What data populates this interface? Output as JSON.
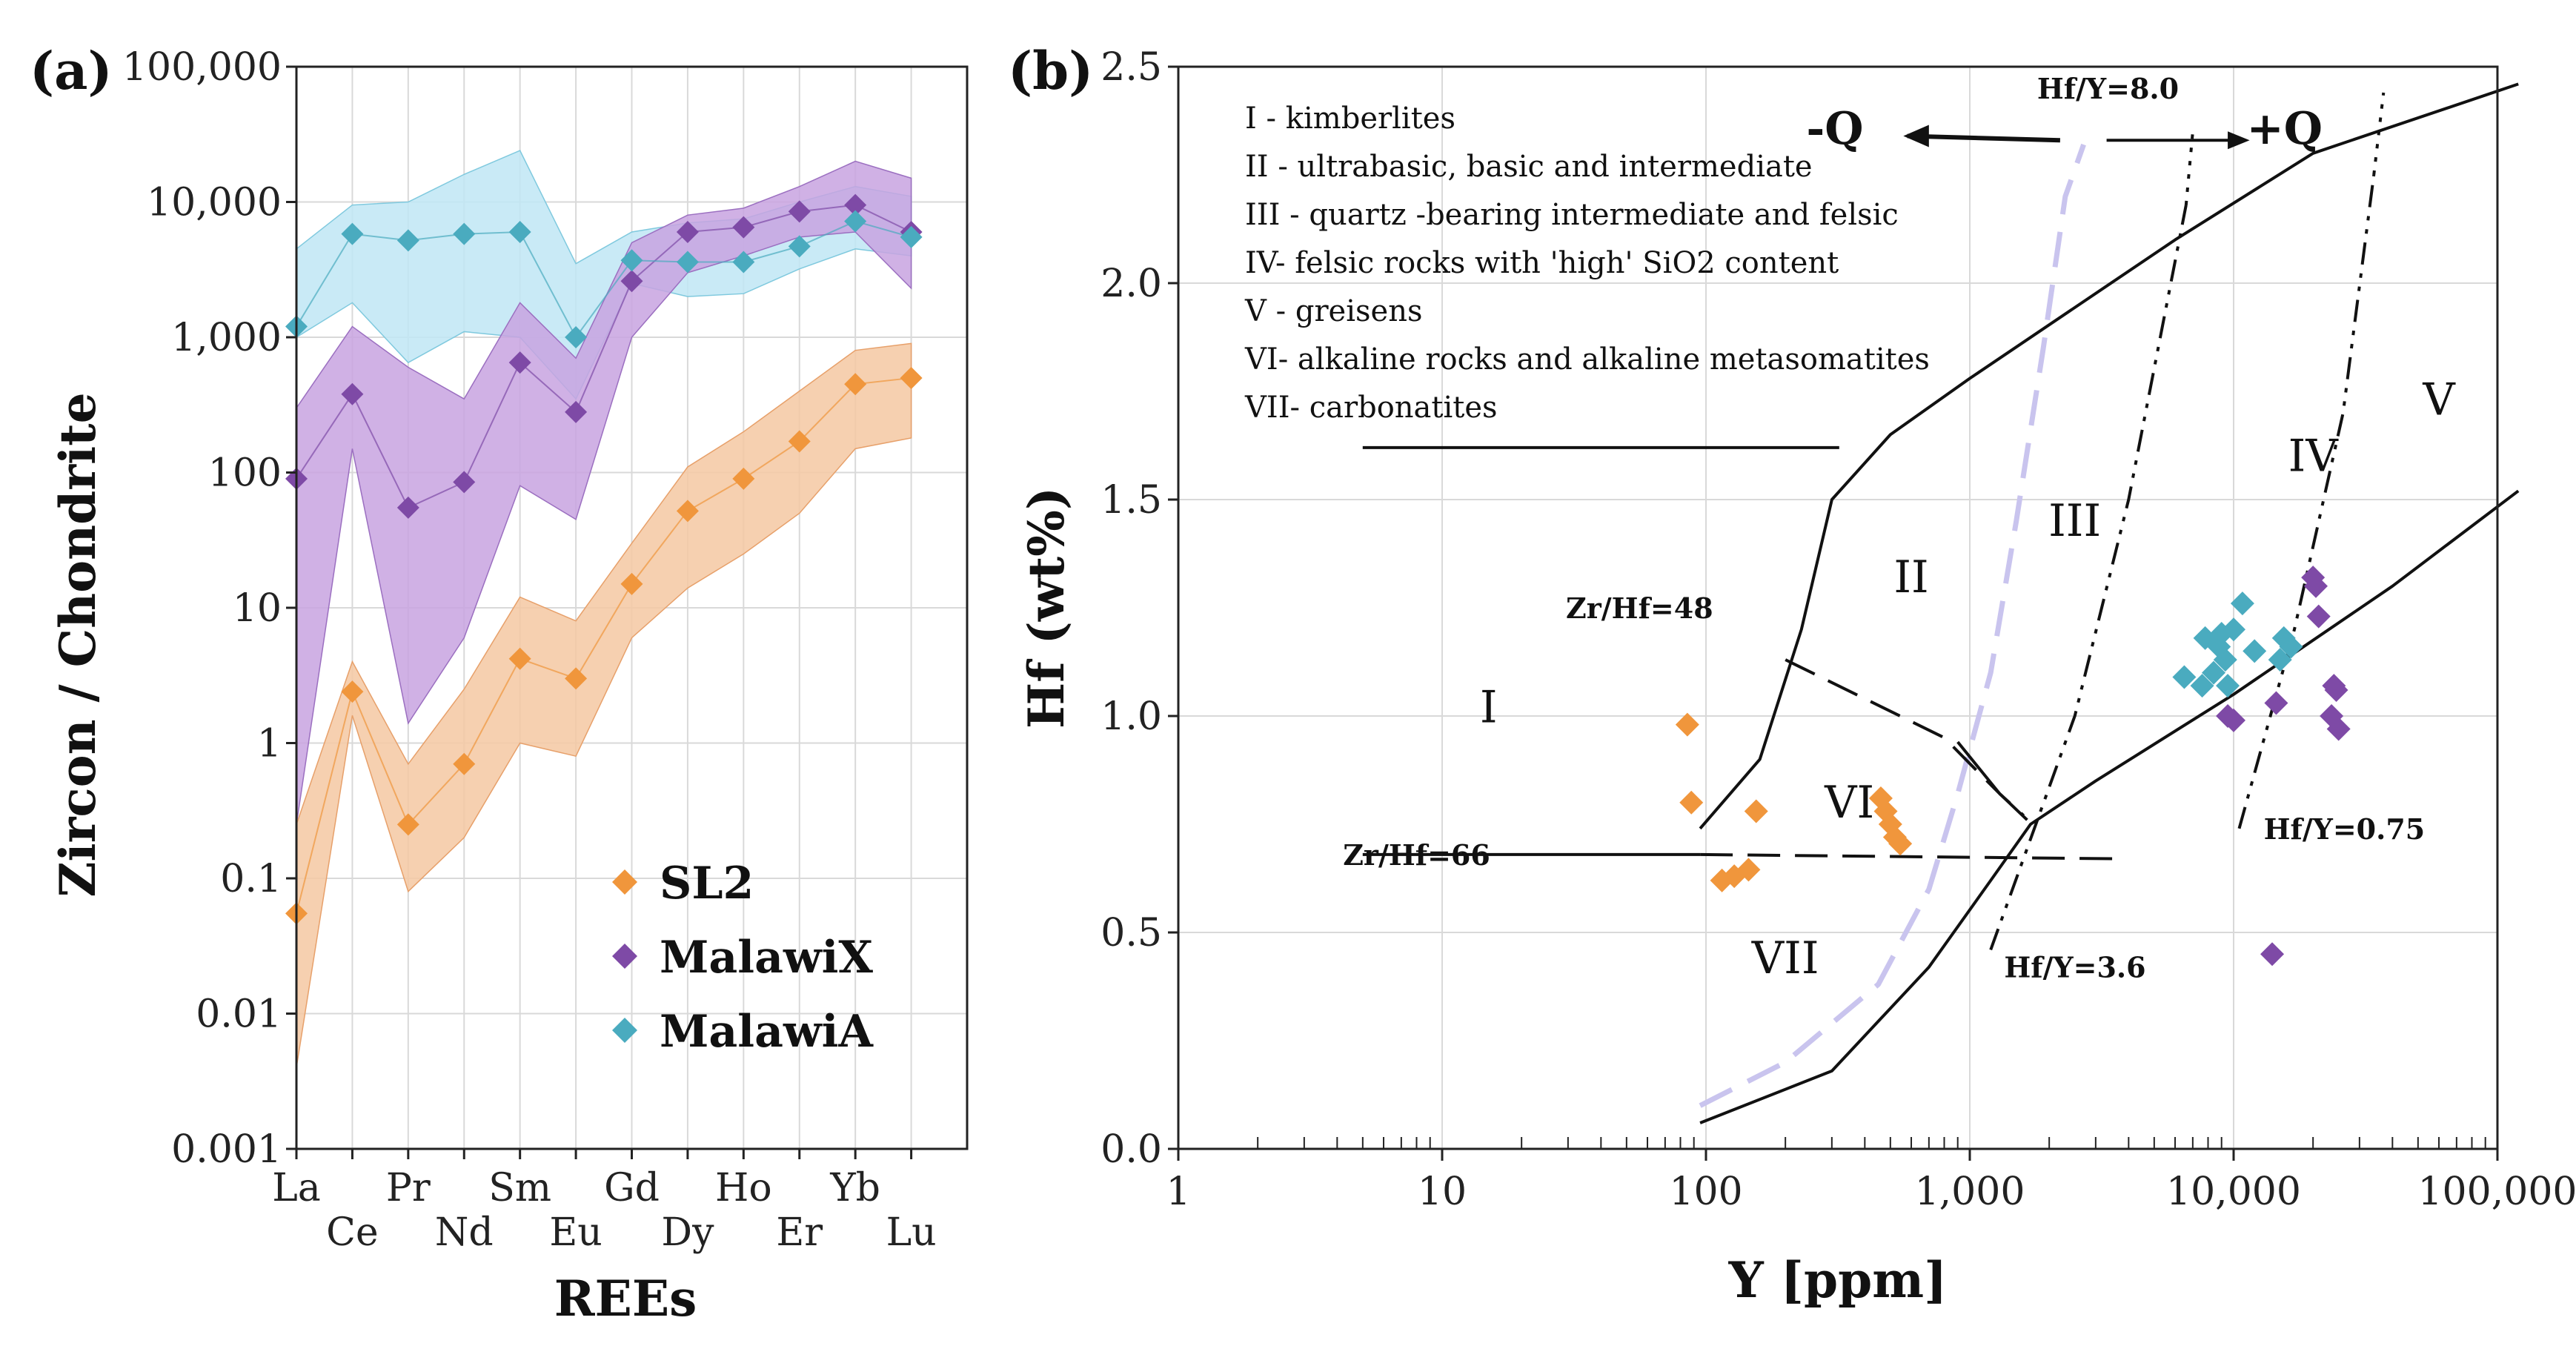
{
  "chart_data": [
    {
      "type": "line",
      "panel_label": "(a)",
      "xlabel": "REEs",
      "ylabel": "Zircon / Chondrite",
      "yscale": "log",
      "ylim": [
        0.001,
        100000
      ],
      "ytick_labels": [
        "0.001",
        "0.01",
        "0.1",
        "1",
        "10",
        "100",
        "1,000",
        "10,000",
        "100,000"
      ],
      "categories": [
        "La",
        "Ce",
        "Pr",
        "Nd",
        "Sm",
        "Eu",
        "Gd",
        "Dy",
        "Ho",
        "Er",
        "Yb",
        "Lu"
      ],
      "legend_position": "bottom-right",
      "series": [
        {
          "name": "SL2",
          "color": "#f0963c",
          "values": [
            0.055,
            2.4,
            0.25,
            0.7,
            4.2,
            3.0,
            15,
            52,
            90,
            170,
            450,
            500
          ],
          "range_low": [
            0.004,
            1.6,
            0.08,
            0.2,
            1.0,
            0.8,
            6,
            14,
            25,
            50,
            150,
            180
          ],
          "range_high": [
            0.25,
            4.0,
            0.7,
            2.5,
            12,
            8.0,
            30,
            110,
            200,
            400,
            800,
            900
          ]
        },
        {
          "name": "MalawiX",
          "color": "#7e4aa6",
          "values": [
            90,
            380,
            55,
            85,
            650,
            280,
            2600,
            6000,
            6500,
            8500,
            9500,
            6000
          ],
          "range_low": [
            0.25,
            150,
            1.4,
            6,
            80,
            45,
            1000,
            3000,
            4000,
            5500,
            6000,
            2300
          ],
          "range_high": [
            300,
            1200,
            600,
            350,
            1800,
            700,
            5000,
            8000,
            9000,
            13000,
            20000,
            15000
          ]
        },
        {
          "name": "MalawiA",
          "color": "#4aabbf",
          "values": [
            1200,
            5800,
            5200,
            5800,
            6000,
            1000,
            3700,
            3600,
            3600,
            4700,
            7200,
            5500
          ],
          "range_low": [
            1000,
            1800,
            650,
            1100,
            1000,
            350,
            2500,
            2000,
            2100,
            3200,
            4500,
            4000
          ],
          "range_high": [
            4500,
            9500,
            10000,
            16000,
            24000,
            3500,
            6000,
            7000,
            7500,
            10000,
            13000,
            11000
          ]
        }
      ]
    },
    {
      "type": "scatter",
      "panel_label": "(b)",
      "xlabel": "Y [ppm]",
      "ylabel": "Hf (wt%)",
      "xscale": "log",
      "xlim": [
        1,
        100000
      ],
      "ylim": [
        0,
        2.5
      ],
      "xtick_labels": [
        "1",
        "10",
        "100",
        "1,000",
        "10,000",
        "100,000"
      ],
      "ytick_labels": [
        "0.0",
        "0.5",
        "1.0",
        "1.5",
        "2.0",
        "2.5"
      ],
      "legend_text": [
        "I  -   kimberlites",
        "II -   ultrabasic, basic and intermediate",
        "III - quartz -bearing intermediate and felsic",
        "IV- felsic rocks with 'high' SiO2 content",
        "V -  greisens",
        "VI- alkaline rocks and alkaline metasomatites",
        "VII- carbonatites"
      ],
      "field_labels": [
        {
          "label": "I",
          "x": 15,
          "y": 1.02
        },
        {
          "label": "II",
          "x": 600,
          "y": 1.32
        },
        {
          "label": "III",
          "x": 2500,
          "y": 1.45
        },
        {
          "label": "IV",
          "x": 20000,
          "y": 1.6
        },
        {
          "label": "V",
          "x": 60000,
          "y": 1.73
        },
        {
          "label": "VI",
          "x": 350,
          "y": 0.8
        },
        {
          "label": "VII",
          "x": 200,
          "y": 0.44
        }
      ],
      "annotations": {
        "hfy80": "Hf/Y=8.0",
        "hfy36": "Hf/Y=3.6",
        "hfy075": "Hf/Y=0.75",
        "zrhf48": "Zr/Hf=48",
        "zrhf66": "Zr/Hf=66",
        "minus_q": "-Q",
        "plus_q": "+Q"
      },
      "series": [
        {
          "name": "SL2",
          "color": "#f0963c",
          "points": [
            [
              85,
              0.98
            ],
            [
              88,
              0.8
            ],
            [
              155,
              0.78
            ],
            [
              115,
              0.62
            ],
            [
              128,
              0.63
            ],
            [
              145,
              0.645
            ],
            [
              460,
              0.81
            ],
            [
              480,
              0.78
            ],
            [
              500,
              0.75
            ],
            [
              520,
              0.72
            ],
            [
              545,
              0.705
            ]
          ]
        },
        {
          "name": "MalawiX",
          "color": "#7e4aa6",
          "points": [
            [
              20000,
              1.32
            ],
            [
              20500,
              1.3
            ],
            [
              21000,
              1.23
            ],
            [
              24000,
              1.07
            ],
            [
              24500,
              1.06
            ],
            [
              23500,
              1.0
            ],
            [
              25000,
              0.97
            ],
            [
              14500,
              1.03
            ],
            [
              9500,
              1.0
            ],
            [
              10000,
              0.99
            ],
            [
              14000,
              0.45
            ]
          ]
        },
        {
          "name": "MalawiA",
          "color": "#4aabbf",
          "points": [
            [
              6500,
              1.09
            ],
            [
              7800,
              1.18
            ],
            [
              8400,
              1.1
            ],
            [
              8800,
              1.16
            ],
            [
              9000,
              1.19
            ],
            [
              9300,
              1.13
            ],
            [
              9500,
              1.07
            ],
            [
              10000,
              1.2
            ],
            [
              10800,
              1.26
            ],
            [
              12000,
              1.15
            ],
            [
              15500,
              1.18
            ],
            [
              16500,
              1.16
            ],
            [
              15000,
              1.13
            ],
            [
              7600,
              1.07
            ]
          ]
        }
      ]
    }
  ]
}
